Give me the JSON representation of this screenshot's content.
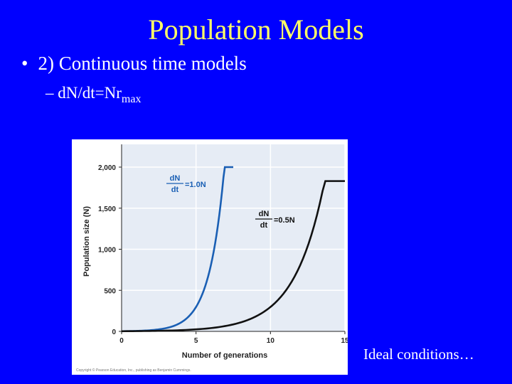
{
  "slide": {
    "title": "Population Models",
    "bullet_marker": "•",
    "bullet_text": "2) Continuous time models",
    "sub_prefix": "–",
    "sub_text": "dN/dt=Nr",
    "sub_subscript": "max",
    "caption": "Ideal conditions…",
    "copyright": "Copyright © Pearson Education, Inc., publishing as Benjamin Cummings."
  },
  "colors": {
    "background": "#0000ff",
    "title": "#ffff66",
    "text": "#ffffff",
    "plot_bg": "#e6ecf5",
    "series_fast": "#1a5fb4",
    "series_slow": "#111111"
  },
  "chart_data": {
    "type": "line",
    "title": "",
    "xlabel": "Number of generations",
    "ylabel": "Population size (N)",
    "xlim": [
      0,
      15
    ],
    "ylim": [
      0,
      2000
    ],
    "x_ticks": [
      "0",
      "5",
      "10",
      "15"
    ],
    "y_ticks": [
      "0",
      "500",
      "1,000",
      "1,500",
      "2,000"
    ],
    "grid": true,
    "series": [
      {
        "name": "dN/dt = 1.0N",
        "annotation_top": "dN",
        "annotation_bottom": "dt",
        "annotation_rhs": "=1.0N",
        "x": [
          0,
          1,
          2,
          3,
          4,
          5,
          6,
          6.5,
          7,
          7.5
        ],
        "y": [
          2,
          5,
          15,
          40,
          109,
          297,
          807,
          1330,
          2000,
          2000
        ]
      },
      {
        "name": "dN/dt = 0.5N",
        "annotation_top": "dN",
        "annotation_bottom": "dt",
        "annotation_rhs": "=0.5N",
        "x": [
          0,
          2,
          4,
          6,
          8,
          10,
          11,
          12,
          13,
          14,
          15
        ],
        "y": [
          2,
          5,
          15,
          40,
          109,
          297,
          490,
          807,
          1330,
          1600,
          1830
        ]
      }
    ]
  }
}
